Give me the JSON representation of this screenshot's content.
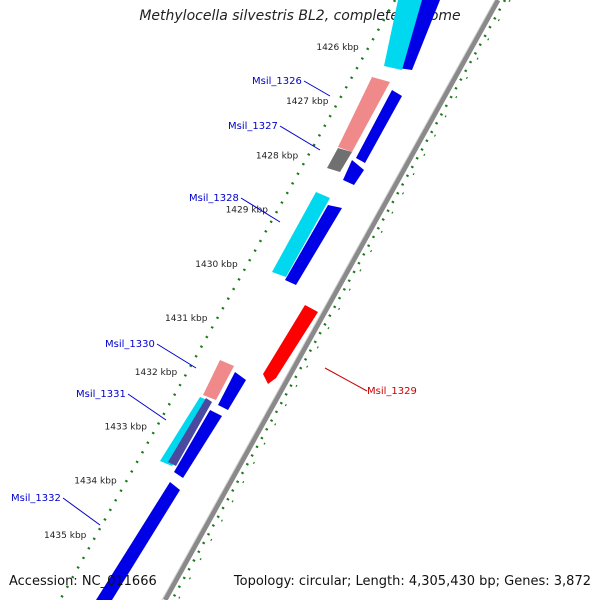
{
  "title": "Methylocella silvestris BL2, complete genome",
  "footer": {
    "accession": "Accession: NC_011666",
    "summary": "Topology: circular; Length: 4,305,430 bp; Genes: 3,872"
  },
  "colors": {
    "forward_cds": "#0000e6",
    "reverse_cds": "#ff0000",
    "cyan_band": "#00d8f0",
    "pink_band": "#f08a8a",
    "gray_band": "#707070",
    "backbone": "#8a8a8a",
    "ticks": "#1a7a1a",
    "gene_label": "#0000cc",
    "highlight_label": "#cc0000"
  },
  "ticks": [
    {
      "label": "1426 kbp",
      "y": 1426
    },
    {
      "label": "1427 kbp",
      "y": 1427
    },
    {
      "label": "1428 kbp",
      "y": 1428
    },
    {
      "label": "1429 kbp",
      "y": 1429
    },
    {
      "label": "1430 kbp",
      "y": 1430
    },
    {
      "label": "1431 kbp",
      "y": 1431
    },
    {
      "label": "1432 kbp",
      "y": 1432
    },
    {
      "label": "1433 kbp",
      "y": 1433
    },
    {
      "label": "1434 kbp",
      "y": 1434
    },
    {
      "label": "1435 kbp",
      "y": 1435
    }
  ],
  "genes": [
    {
      "name": "Msil_1326",
      "pos": 1426.9,
      "strand": "left"
    },
    {
      "name": "Msil_1327",
      "pos": 1427.7,
      "strand": "left"
    },
    {
      "name": "Msil_1328",
      "pos": 1429.0,
      "strand": "left"
    },
    {
      "name": "Msil_1330",
      "pos": 1432.0,
      "strand": "left"
    },
    {
      "name": "Msil_1331",
      "pos": 1432.8,
      "strand": "left"
    },
    {
      "name": "Msil_1332",
      "pos": 1435.0,
      "strand": "left"
    },
    {
      "name": "Msil_1329",
      "pos": 1431.7,
      "strand": "right"
    }
  ]
}
